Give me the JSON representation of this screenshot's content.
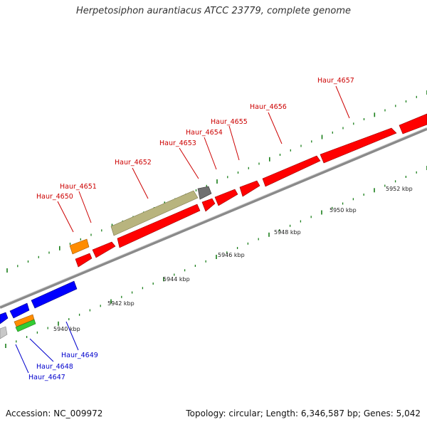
{
  "title": "Herpetosiphon aurantiacus ATCC 23779, complete genome",
  "footer": {
    "accession": "Accession: NC_009972",
    "summary": "Topology: circular; Length: 6,346,587 bp; Genes: 5,042"
  },
  "colors": {
    "forward_gene": "#ff0000",
    "reverse_gene": "#0000ff",
    "pseudo_gene": "#b5b27a",
    "rna_gene": "#ff8c00",
    "green_gene": "#33cc33",
    "grey_gene": "#777777",
    "forward_label": "#cc0000",
    "reverse_label": "#0000cc",
    "tick": "#1a7f1a"
  },
  "scale": {
    "unit": "kbp",
    "labels": [
      "5940 kbp",
      "5942 kbp",
      "5944 kbp",
      "5946 kbp",
      "5948 kbp",
      "5950 kbp",
      "5952 kbp"
    ]
  },
  "gene_labels": {
    "forward": [
      "Haur_4650",
      "Haur_4651",
      "Haur_4652",
      "Haur_4653",
      "Haur_4654",
      "Haur_4655",
      "Haur_4656",
      "Haur_4657"
    ],
    "reverse": [
      "Haur_4649",
      "Haur_4648",
      "Haur_4647"
    ]
  }
}
